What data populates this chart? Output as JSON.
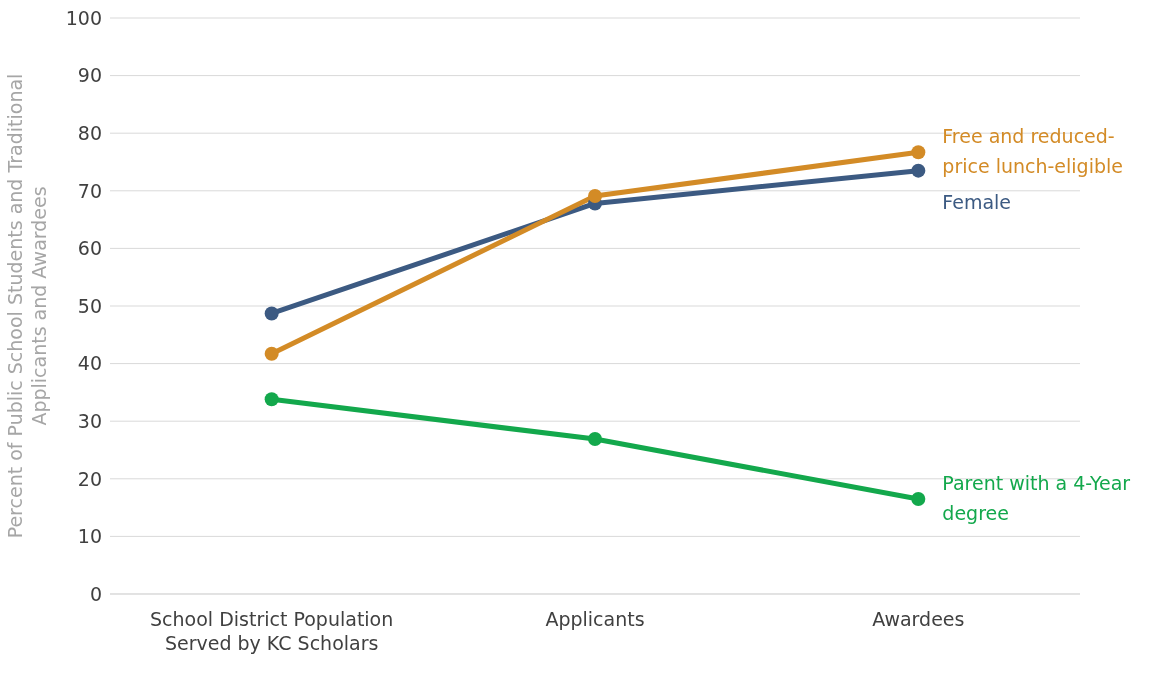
{
  "chart_data": {
    "type": "line",
    "ylabel": "Percent of Public School Students and Traditional Applicants and Awardees",
    "categories": [
      "School District Population Served by KC Scholars",
      "Applicants",
      "Awardees"
    ],
    "series": [
      {
        "name": "Female",
        "color": "#3c5a82",
        "values": [
          48.7,
          67.8,
          73.5
        ]
      },
      {
        "name": "Free and reduced-price lunch-eligible",
        "color": "#d38b26",
        "values": [
          41.7,
          69.1,
          76.7
        ]
      },
      {
        "name": "Parent with a 4-Year degree",
        "color": "#13a84c",
        "values": [
          33.8,
          26.9,
          16.5
        ]
      }
    ],
    "ylim": [
      0,
      100
    ],
    "yticks": [
      0,
      10,
      20,
      30,
      40,
      50,
      60,
      70,
      80,
      90,
      100
    ],
    "grid": "y",
    "marker": "circle",
    "line_style": "solid",
    "legend": false
  }
}
